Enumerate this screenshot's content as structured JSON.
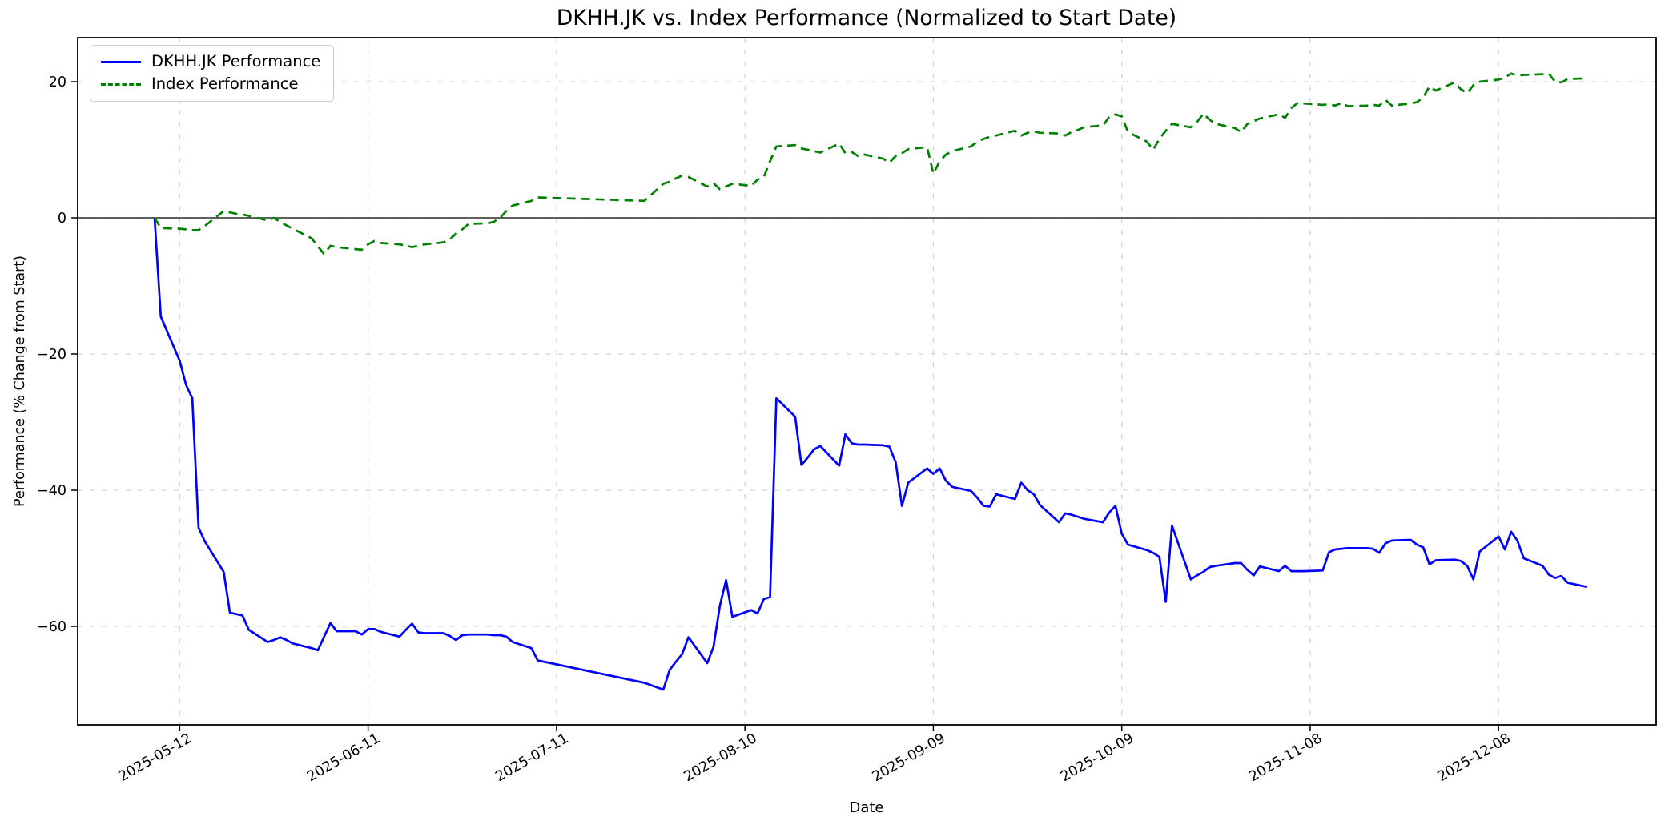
{
  "title": "DKHH.JK vs. Index Performance (Normalized to Start Date)",
  "colors": {
    "dkhh_line": "#0000ff",
    "index_line": "#008000",
    "grid": "#d3d3d3",
    "zero_line": "#2b2b2b",
    "axis": "#000000",
    "background": "#ffffff",
    "legend_border": "#cccccc"
  },
  "chart_data": {
    "type": "line",
    "title": "DKHH.JK vs. Index Performance (Normalized to Start Date)",
    "xlabel": "Date",
    "ylabel": "Performance (% Change from Start)",
    "grid": true,
    "grid_style": "dashed",
    "legend_position": "upper left",
    "ylim": [
      -74.5,
      26.5
    ],
    "y_tick_values": [
      20,
      0,
      -20,
      -40,
      -60
    ],
    "y_tick_labels": [
      "20",
      "0",
      "−20",
      "−40",
      "−60"
    ],
    "x_tick_labels": [
      "2025-05-12",
      "2025-06-11",
      "2025-07-11",
      "2025-08-10",
      "2025-09-09",
      "2025-10-09",
      "2025-11-08",
      "2025-12-08"
    ],
    "zero_reference_line": 0,
    "x": [
      "2025-05-08",
      "2025-05-09",
      "2025-05-12",
      "2025-05-13",
      "2025-05-14",
      "2025-05-15",
      "2025-05-16",
      "2025-05-19",
      "2025-05-20",
      "2025-05-21",
      "2025-05-22",
      "2025-05-23",
      "2025-05-26",
      "2025-05-27",
      "2025-05-28",
      "2025-05-29",
      "2025-05-30",
      "2025-06-02",
      "2025-06-03",
      "2025-06-04",
      "2025-06-05",
      "2025-06-06",
      "2025-06-09",
      "2025-06-10",
      "2025-06-11",
      "2025-06-12",
      "2025-06-13",
      "2025-06-16",
      "2025-06-17",
      "2025-06-18",
      "2025-06-19",
      "2025-06-20",
      "2025-06-23",
      "2025-06-24",
      "2025-06-25",
      "2025-06-26",
      "2025-06-27",
      "2025-06-30",
      "2025-07-01",
      "2025-07-02",
      "2025-07-03",
      "2025-07-04",
      "2025-07-07",
      "2025-07-08",
      "2025-07-25",
      "2025-07-28",
      "2025-07-29",
      "2025-07-30",
      "2025-07-31",
      "2025-08-01",
      "2025-08-04",
      "2025-08-05",
      "2025-08-06",
      "2025-08-07",
      "2025-08-08",
      "2025-08-11",
      "2025-08-12",
      "2025-08-13",
      "2025-08-14",
      "2025-08-15",
      "2025-08-18",
      "2025-08-19",
      "2025-08-20",
      "2025-08-21",
      "2025-08-22",
      "2025-08-25",
      "2025-08-26",
      "2025-08-27",
      "2025-08-28",
      "2025-08-29",
      "2025-09-01",
      "2025-09-02",
      "2025-09-03",
      "2025-09-04",
      "2025-09-05",
      "2025-09-08",
      "2025-09-09",
      "2025-09-10",
      "2025-09-11",
      "2025-09-12",
      "2025-09-15",
      "2025-09-16",
      "2025-09-17",
      "2025-09-18",
      "2025-09-19",
      "2025-09-22",
      "2025-09-23",
      "2025-09-24",
      "2025-09-25",
      "2025-09-26",
      "2025-09-29",
      "2025-09-30",
      "2025-10-01",
      "2025-10-02",
      "2025-10-03",
      "2025-10-06",
      "2025-10-07",
      "2025-10-08",
      "2025-10-09",
      "2025-10-10",
      "2025-10-13",
      "2025-10-14",
      "2025-10-15",
      "2025-10-16",
      "2025-10-17",
      "2025-10-20",
      "2025-10-21",
      "2025-10-22",
      "2025-10-23",
      "2025-10-24",
      "2025-10-27",
      "2025-10-28",
      "2025-10-29",
      "2025-10-30",
      "2025-10-31",
      "2025-11-03",
      "2025-11-04",
      "2025-11-05",
      "2025-11-06",
      "2025-11-07",
      "2025-11-10",
      "2025-11-11",
      "2025-11-12",
      "2025-11-13",
      "2025-11-14",
      "2025-11-17",
      "2025-11-18",
      "2025-11-19",
      "2025-11-20",
      "2025-11-21",
      "2025-11-24",
      "2025-11-25",
      "2025-11-26",
      "2025-11-27",
      "2025-11-28",
      "2025-12-01",
      "2025-12-02",
      "2025-12-03",
      "2025-12-04",
      "2025-12-05",
      "2025-12-08",
      "2025-12-09",
      "2025-12-10",
      "2025-12-11",
      "2025-12-12",
      "2025-12-15",
      "2025-12-16",
      "2025-12-17",
      "2025-12-18",
      "2025-12-19",
      "2025-12-22"
    ],
    "series": [
      {
        "name": "DKHH.JK Performance",
        "color": "#0000ff",
        "style": "solid",
        "values": [
          0,
          -14.5,
          -21,
          -24.5,
          -26.5,
          -45.5,
          -47.5,
          -52,
          -58,
          -58.2,
          -58.4,
          -60.5,
          -62.3,
          -62,
          -61.6,
          -62,
          -62.5,
          -63.2,
          -63.5,
          -61.5,
          -59.5,
          -60.7,
          -60.7,
          -61.2,
          -60.4,
          -60.4,
          -60.8,
          -61.5,
          -60.5,
          -59.6,
          -60.9,
          -61,
          -61,
          -61.4,
          -62,
          -61.3,
          -61.2,
          -61.2,
          -61.3,
          -61.3,
          -61.5,
          -62.3,
          -63.2,
          -65,
          -68.3,
          -69.3,
          -66.4,
          -65.2,
          -64.1,
          -61.6,
          -65.4,
          -63,
          -57,
          -53.2,
          -58.6,
          -57.6,
          -58.1,
          -56,
          -55.7,
          -26.5,
          -29.2,
          -36.3,
          -35.2,
          -34,
          -33.5,
          -36.4,
          -31.8,
          -33.1,
          -33.3,
          -33.3,
          -33.4,
          -33.6,
          -35.9,
          -42.3,
          -38.9,
          -36.8,
          -37.6,
          -36.8,
          -38.6,
          -39.5,
          -40.1,
          -41.1,
          -42.3,
          -42.4,
          -40.6,
          -41.3,
          -38.9,
          -40,
          -40.6,
          -42.2,
          -44.7,
          -43.4,
          -43.6,
          -43.9,
          -44.2,
          -44.7,
          -43.3,
          -42.3,
          -46.4,
          -48,
          -48.8,
          -49.2,
          -49.8,
          -56.4,
          -45.2,
          -53.1,
          -52.5,
          -52,
          -51.3,
          -51.1,
          -50.7,
          -50.7,
          -51.7,
          -52.5,
          -51.2,
          -51.9,
          -51.1,
          -51.9,
          -51.9,
          -51.9,
          -51.8,
          -49.1,
          -48.7,
          -48.6,
          -48.5,
          -48.5,
          -48.6,
          -49.2,
          -47.8,
          -47.4,
          -47.3,
          -48,
          -48.4,
          -50.9,
          -50.3,
          -50.2,
          -50.4,
          -51.1,
          -53.1,
          -49,
          -46.8,
          -48.7,
          -46.1,
          -47.4,
          -50,
          -51.1,
          -52.4,
          -52.9,
          -52.6,
          -53.6,
          -54.2
        ]
      },
      {
        "name": "Index Performance",
        "color": "#008000",
        "style": "dashed",
        "values": [
          0,
          -1.5,
          -1.6,
          -1.7,
          -1.8,
          -1.8,
          -1.2,
          1.0,
          0.8,
          0.6,
          0.5,
          0.3,
          -0.4,
          0.0,
          -0.6,
          -1.1,
          -1.6,
          -3.0,
          -4.2,
          -5.3,
          -4.1,
          -4.3,
          -4.6,
          -4.7,
          -3.9,
          -3.4,
          -3.7,
          -3.9,
          -4.1,
          -4.3,
          -4.1,
          -3.9,
          -3.6,
          -3.2,
          -2.3,
          -1.7,
          -0.9,
          -0.8,
          -0.6,
          0.0,
          1.0,
          1.8,
          2.5,
          3.0,
          2.5,
          5.0,
          5.3,
          5.8,
          6.2,
          6.0,
          4.6,
          5.1,
          4.2,
          4.6,
          5.0,
          4.7,
          5.6,
          6.0,
          8.3,
          10.5,
          10.7,
          10.2,
          10.0,
          9.8,
          9.6,
          10.9,
          9.5,
          9.7,
          9.1,
          9.3,
          8.7,
          8.1,
          9.1,
          9.5,
          10.1,
          10.4,
          6.5,
          8.3,
          9.3,
          9.8,
          10.5,
          11.2,
          11.6,
          11.9,
          12.1,
          12.8,
          12.1,
          12.5,
          12.7,
          12.5,
          12.4,
          12.1,
          12.6,
          12.9,
          13.3,
          13.6,
          14.8,
          15.2,
          14.9,
          12.6,
          11.2,
          10.0,
          11.6,
          12.8,
          13.8,
          13.3,
          14.1,
          15.3,
          14.4,
          13.8,
          13.2,
          12.6,
          13.8,
          14.2,
          14.6,
          15.2,
          14.7,
          16.1,
          16.9,
          16.8,
          16.6,
          16.7,
          16.5,
          16.9,
          16.4,
          16.5,
          16.6,
          16.5,
          17.3,
          16.5,
          16.8,
          17.0,
          17.7,
          19.3,
          18.7,
          19.9,
          18.9,
          18.3,
          19.5,
          20.0,
          20.3,
          20.6,
          21.2,
          20.9,
          21.0,
          21.1,
          21.2,
          20.0,
          19.9,
          20.4,
          20.5
        ]
      }
    ]
  }
}
